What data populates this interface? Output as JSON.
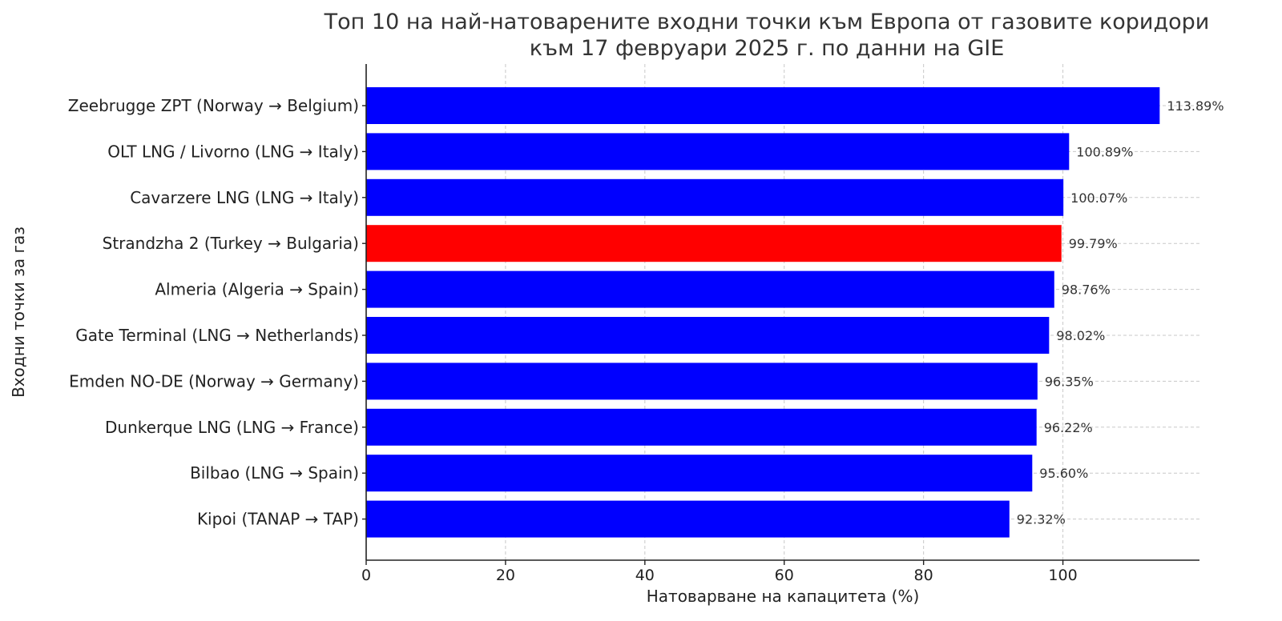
{
  "chart_data": {
    "type": "bar",
    "orientation": "horizontal",
    "title_lines": [
      "Топ 10 на най-натоварените входни точки към Европа от газовите коридори",
      "към 17 февруари 2025 г. по данни на GIE"
    ],
    "xlabel": "Натоварване на капацитета (%)",
    "ylabel": "Входни точки за газ",
    "xlim": [
      0,
      119.6
    ],
    "xticks": [
      0,
      20,
      40,
      60,
      80,
      100
    ],
    "grid": true,
    "categories": [
      "Zeebrugge ZPT (Norway → Belgium)",
      "OLT LNG / Livorno (LNG → Italy)",
      "Cavarzere LNG (LNG → Italy)",
      "Strandzha 2 (Turkey → Bulgaria)",
      "Almeria (Algeria → Spain)",
      "Gate Terminal (LNG → Netherlands)",
      "Emden NO-DE (Norway → Germany)",
      "Dunkerque LNG (LNG → France)",
      "Bilbao (LNG → Spain)",
      "Kipoi (TANAP → TAP)"
    ],
    "values": [
      113.89,
      100.89,
      100.07,
      99.79,
      98.76,
      98.02,
      96.35,
      96.22,
      95.6,
      92.32
    ],
    "value_labels": [
      "113.89%",
      "100.89%",
      "100.07%",
      "99.79%",
      "98.76%",
      "98.02%",
      "96.35%",
      "96.22%",
      "95.60%",
      "92.32%"
    ],
    "colors": [
      "#0000ff",
      "#0000ff",
      "#0000ff",
      "#ff0000",
      "#0000ff",
      "#0000ff",
      "#0000ff",
      "#0000ff",
      "#0000ff",
      "#0000ff"
    ]
  }
}
